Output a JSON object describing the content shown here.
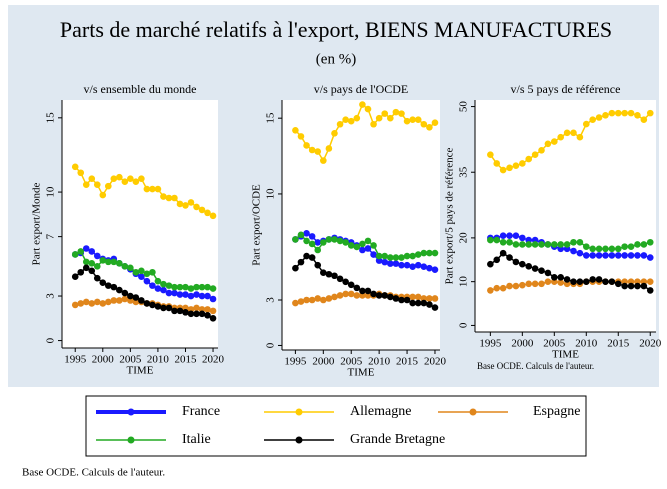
{
  "title": "Parts de marché relatifs à l'export, BIENS MANUFACTURES",
  "subtitle": "(en %)",
  "note": "Base OCDE. Calculs de l'auteur.",
  "chart_data": [
    {
      "type": "line",
      "title": "v/s ensemble du monde",
      "x_label": "TIME",
      "y_label": "Part export/Monde",
      "x": [
        1995,
        1996,
        1997,
        1998,
        1999,
        2000,
        2001,
        2002,
        2003,
        2004,
        2005,
        2006,
        2007,
        2008,
        2009,
        2010,
        2011,
        2012,
        2013,
        2014,
        2015,
        2016,
        2017,
        2018,
        2019,
        2020
      ],
      "xlim": [
        1992.6,
        2020.9
      ],
      "xticks": [
        1995,
        2000,
        2005,
        2010,
        2015,
        2020
      ],
      "ylim": [
        -0.5,
        16.2
      ],
      "yticks": [
        0,
        3,
        7,
        10,
        15
      ],
      "series": [
        {
          "name": "France",
          "color": "#1a1aff",
          "values": [
            5.8,
            5.9,
            6.2,
            6.0,
            5.7,
            5.5,
            5.4,
            5.5,
            5.2,
            5.0,
            4.8,
            4.5,
            4.3,
            4.0,
            3.7,
            3.5,
            3.4,
            3.2,
            3.2,
            3.1,
            3.1,
            3.0,
            3.1,
            3.0,
            3.0,
            2.8
          ]
        },
        {
          "name": "Allemagne",
          "color": "#ffcc00",
          "values": [
            11.7,
            11.3,
            10.5,
            10.9,
            10.5,
            9.8,
            10.4,
            10.9,
            11.0,
            10.7,
            10.9,
            10.7,
            10.9,
            10.2,
            10.2,
            10.2,
            9.7,
            9.6,
            9.6,
            9.2,
            9.1,
            9.3,
            9.0,
            8.8,
            8.6,
            8.4
          ]
        },
        {
          "name": "Espagne",
          "color": "#e0861c",
          "values": [
            2.4,
            2.5,
            2.6,
            2.5,
            2.6,
            2.5,
            2.6,
            2.7,
            2.7,
            2.8,
            2.7,
            2.6,
            2.6,
            2.5,
            2.5,
            2.4,
            2.3,
            2.3,
            2.2,
            2.2,
            2.2,
            2.1,
            2.2,
            2.1,
            2.1,
            2.0
          ]
        },
        {
          "name": "Italie",
          "color": "#22aa22",
          "values": [
            5.8,
            6.0,
            5.3,
            5.2,
            5.0,
            5.4,
            5.3,
            5.3,
            5.2,
            5.0,
            4.9,
            4.6,
            4.7,
            4.5,
            4.6,
            4.0,
            3.8,
            3.7,
            3.6,
            3.6,
            3.6,
            3.5,
            3.6,
            3.6,
            3.6,
            3.5
          ]
        },
        {
          "name": "Grande Bretagne",
          "color": "#000000",
          "values": [
            4.3,
            4.6,
            4.9,
            4.7,
            4.2,
            3.9,
            3.7,
            3.6,
            3.4,
            3.2,
            3.0,
            2.9,
            2.7,
            2.5,
            2.4,
            2.3,
            2.2,
            2.2,
            2.0,
            2.0,
            1.9,
            1.8,
            1.8,
            1.8,
            1.7,
            1.5
          ]
        }
      ]
    },
    {
      "type": "line",
      "title": "v/s pays de l'OCDE",
      "x_label": "TIME",
      "y_label": "Part export/OCDE",
      "x": [
        1995,
        1996,
        1997,
        1998,
        1999,
        2000,
        2001,
        2002,
        2003,
        2004,
        2005,
        2006,
        2007,
        2008,
        2009,
        2010,
        2011,
        2012,
        2013,
        2014,
        2015,
        2016,
        2017,
        2018,
        2019,
        2020
      ],
      "xlim": [
        1992.6,
        2020.9
      ],
      "xticks": [
        1995,
        2000,
        2005,
        2010,
        2015,
        2020
      ],
      "ylim": [
        -0.3,
        16.2
      ],
      "yticks": [
        0,
        3,
        10,
        15
      ],
      "series": [
        {
          "name": "France",
          "color": "#1a1aff",
          "values": [
            7.0,
            7.2,
            7.4,
            7.2,
            6.8,
            6.9,
            7.0,
            7.1,
            7.0,
            6.9,
            6.8,
            6.6,
            6.3,
            6.4,
            6.0,
            5.6,
            5.5,
            5.4,
            5.4,
            5.3,
            5.3,
            5.2,
            5.3,
            5.2,
            5.1,
            5.0
          ]
        },
        {
          "name": "Allemagne",
          "color": "#ffcc00",
          "values": [
            14.2,
            13.8,
            13.2,
            12.9,
            12.8,
            12.2,
            13.0,
            14.0,
            14.6,
            14.9,
            14.8,
            15.0,
            15.9,
            15.6,
            14.6,
            15.0,
            15.3,
            15.0,
            15.4,
            15.3,
            14.8,
            14.9,
            14.9,
            14.6,
            14.4,
            14.7
          ]
        },
        {
          "name": "Espagne",
          "color": "#e0861c",
          "values": [
            2.8,
            2.9,
            3.0,
            3.0,
            3.1,
            3.0,
            3.1,
            3.2,
            3.3,
            3.4,
            3.4,
            3.3,
            3.3,
            3.3,
            3.3,
            3.4,
            3.3,
            3.3,
            3.2,
            3.2,
            3.2,
            3.2,
            3.2,
            3.1,
            3.1,
            3.1
          ]
        },
        {
          "name": "Italie",
          "color": "#22aa22",
          "values": [
            7.0,
            7.3,
            6.9,
            6.7,
            6.3,
            6.8,
            7.0,
            7.0,
            6.9,
            6.8,
            6.6,
            6.5,
            6.7,
            6.9,
            6.6,
            5.9,
            5.9,
            5.8,
            5.8,
            5.8,
            5.9,
            5.9,
            6.0,
            6.1,
            6.1,
            6.1
          ]
        },
        {
          "name": "Grande Bretagne",
          "color": "#000000",
          "values": [
            5.1,
            5.5,
            5.9,
            5.8,
            5.3,
            4.8,
            4.7,
            4.6,
            4.4,
            4.2,
            4.0,
            3.8,
            3.6,
            3.6,
            3.4,
            3.3,
            3.3,
            3.2,
            3.1,
            3.0,
            3.0,
            2.8,
            2.8,
            2.8,
            2.7,
            2.5
          ]
        }
      ]
    },
    {
      "type": "line",
      "title": "v/s  5 pays de référence",
      "x_label": "TIME",
      "y_label": "Part export/5 pays de référence",
      "note": "Base OCDE. Calculs de l'auteur.",
      "x": [
        1995,
        1996,
        1997,
        1998,
        1999,
        2000,
        2001,
        2002,
        2003,
        2004,
        2005,
        2006,
        2007,
        2008,
        2009,
        2010,
        2011,
        2012,
        2013,
        2014,
        2015,
        2016,
        2017,
        2018,
        2019,
        2020
      ],
      "xlim": [
        1992.6,
        2020.9
      ],
      "xticks": [
        1995,
        2000,
        2005,
        2010,
        2015,
        2020
      ],
      "ylim": [
        -1.5,
        51.5
      ],
      "yticks": [
        0,
        10,
        20,
        35,
        50
      ],
      "series": [
        {
          "name": "France",
          "color": "#1a1aff",
          "values": [
            20,
            20,
            20.5,
            20.5,
            20.5,
            20,
            19.5,
            19.5,
            19,
            18.5,
            18,
            17.5,
            17.5,
            17,
            16.5,
            16,
            16,
            16,
            16,
            16,
            16,
            16,
            16,
            16,
            16,
            15.5
          ]
        },
        {
          "name": "Allemagne",
          "color": "#ffcc00",
          "values": [
            39,
            37,
            35.5,
            36,
            36.5,
            37,
            38,
            39,
            40,
            41.5,
            42,
            43,
            44,
            44,
            43,
            46,
            47,
            47.5,
            48,
            48.5,
            48.5,
            48.5,
            48.5,
            48,
            47,
            48.5
          ]
        },
        {
          "name": "Espagne",
          "color": "#e0861c",
          "values": [
            8,
            8.5,
            8.5,
            9,
            9,
            9.2,
            9.5,
            9.5,
            9.5,
            10,
            10,
            9.8,
            9.5,
            9.5,
            9.5,
            10,
            10,
            10,
            10,
            10,
            10,
            10,
            10,
            10,
            10,
            10
          ]
        },
        {
          "name": "Italie",
          "color": "#22aa22",
          "values": [
            19.5,
            19.5,
            19,
            19,
            18.5,
            18.5,
            18.5,
            18.5,
            18.5,
            18.5,
            18.5,
            18.5,
            18.5,
            19,
            19,
            18,
            17.5,
            17.5,
            17.5,
            17.5,
            17.5,
            18,
            18,
            18.5,
            18.5,
            19
          ]
        },
        {
          "name": "Grande Bretagne",
          "color": "#000000",
          "values": [
            14,
            15,
            16.5,
            15.5,
            14.5,
            14,
            13.5,
            13,
            12.5,
            12,
            11,
            11,
            10.5,
            10,
            10,
            10,
            10.5,
            10.5,
            10,
            10,
            9.5,
            9,
            9,
            9,
            9,
            8
          ]
        }
      ]
    }
  ]
}
